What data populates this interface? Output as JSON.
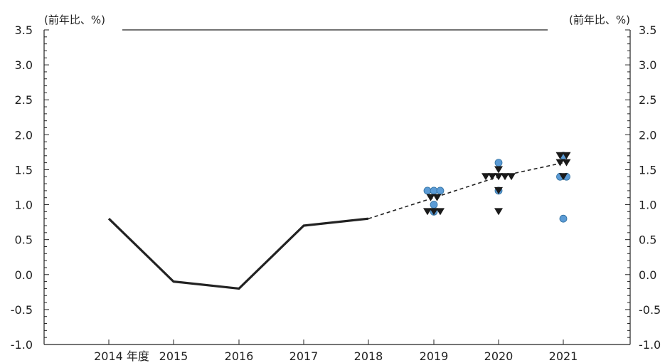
{
  "chart_data": {
    "type": "line",
    "unit_left": "(前年比、%)",
    "unit_right": "(前年比、%)",
    "ylim": [
      -1.0,
      3.5
    ],
    "yticks": [
      "3.5",
      "3.0",
      "2.5",
      "2.0",
      "1.5",
      "1.0",
      "0.5",
      "0.0",
      "-0.5",
      "-1.0"
    ],
    "negative_tick_color": "#d7282f",
    "grid": false,
    "categories": [
      "2014 年度",
      "2015",
      "2016",
      "2017",
      "2018",
      "2019",
      "2020",
      "2021"
    ],
    "series": [
      {
        "style": "solid",
        "color": "#222222",
        "x": [
          "2014",
          "2015",
          "2016",
          "2017",
          "2018"
        ],
        "values": [
          0.8,
          -0.1,
          -0.2,
          0.7,
          0.8
        ]
      },
      {
        "style": "dashed",
        "color": "#222222",
        "x": [
          "2018",
          "2019",
          "2020",
          "2021"
        ],
        "values": [
          0.8,
          1.1,
          1.4,
          1.6
        ]
      }
    ],
    "circle_points": {
      "color": "#5b9bd5",
      "points": [
        {
          "x": "2019",
          "y": 1.2
        },
        {
          "x": "2019",
          "y": 1.2
        },
        {
          "x": "2019",
          "y": 1.2
        },
        {
          "x": "2019",
          "y": 1.0
        },
        {
          "x": "2019",
          "y": 0.9
        },
        {
          "x": "2020",
          "y": 1.6
        },
        {
          "x": "2020",
          "y": 1.2
        },
        {
          "x": "2021",
          "y": 1.7
        },
        {
          "x": "2021",
          "y": 1.4
        },
        {
          "x": "2021",
          "y": 1.4
        },
        {
          "x": "2021",
          "y": 0.8
        }
      ]
    },
    "triangle_points": {
      "color": "#1a1a1a",
      "points": [
        {
          "x": "2019",
          "y": 1.1
        },
        {
          "x": "2019",
          "y": 1.1
        },
        {
          "x": "2019",
          "y": 0.9
        },
        {
          "x": "2019",
          "y": 0.9
        },
        {
          "x": "2019",
          "y": 0.9
        },
        {
          "x": "2020",
          "y": 1.5
        },
        {
          "x": "2020",
          "y": 1.4
        },
        {
          "x": "2020",
          "y": 1.4
        },
        {
          "x": "2020",
          "y": 1.4
        },
        {
          "x": "2020",
          "y": 1.4
        },
        {
          "x": "2020",
          "y": 1.4
        },
        {
          "x": "2020",
          "y": 1.2
        },
        {
          "x": "2020",
          "y": 0.9
        },
        {
          "x": "2021",
          "y": 1.7
        },
        {
          "x": "2021",
          "y": 1.7
        },
        {
          "x": "2021",
          "y": 1.6
        },
        {
          "x": "2021",
          "y": 1.6
        },
        {
          "x": "2021",
          "y": 1.4
        }
      ]
    }
  }
}
